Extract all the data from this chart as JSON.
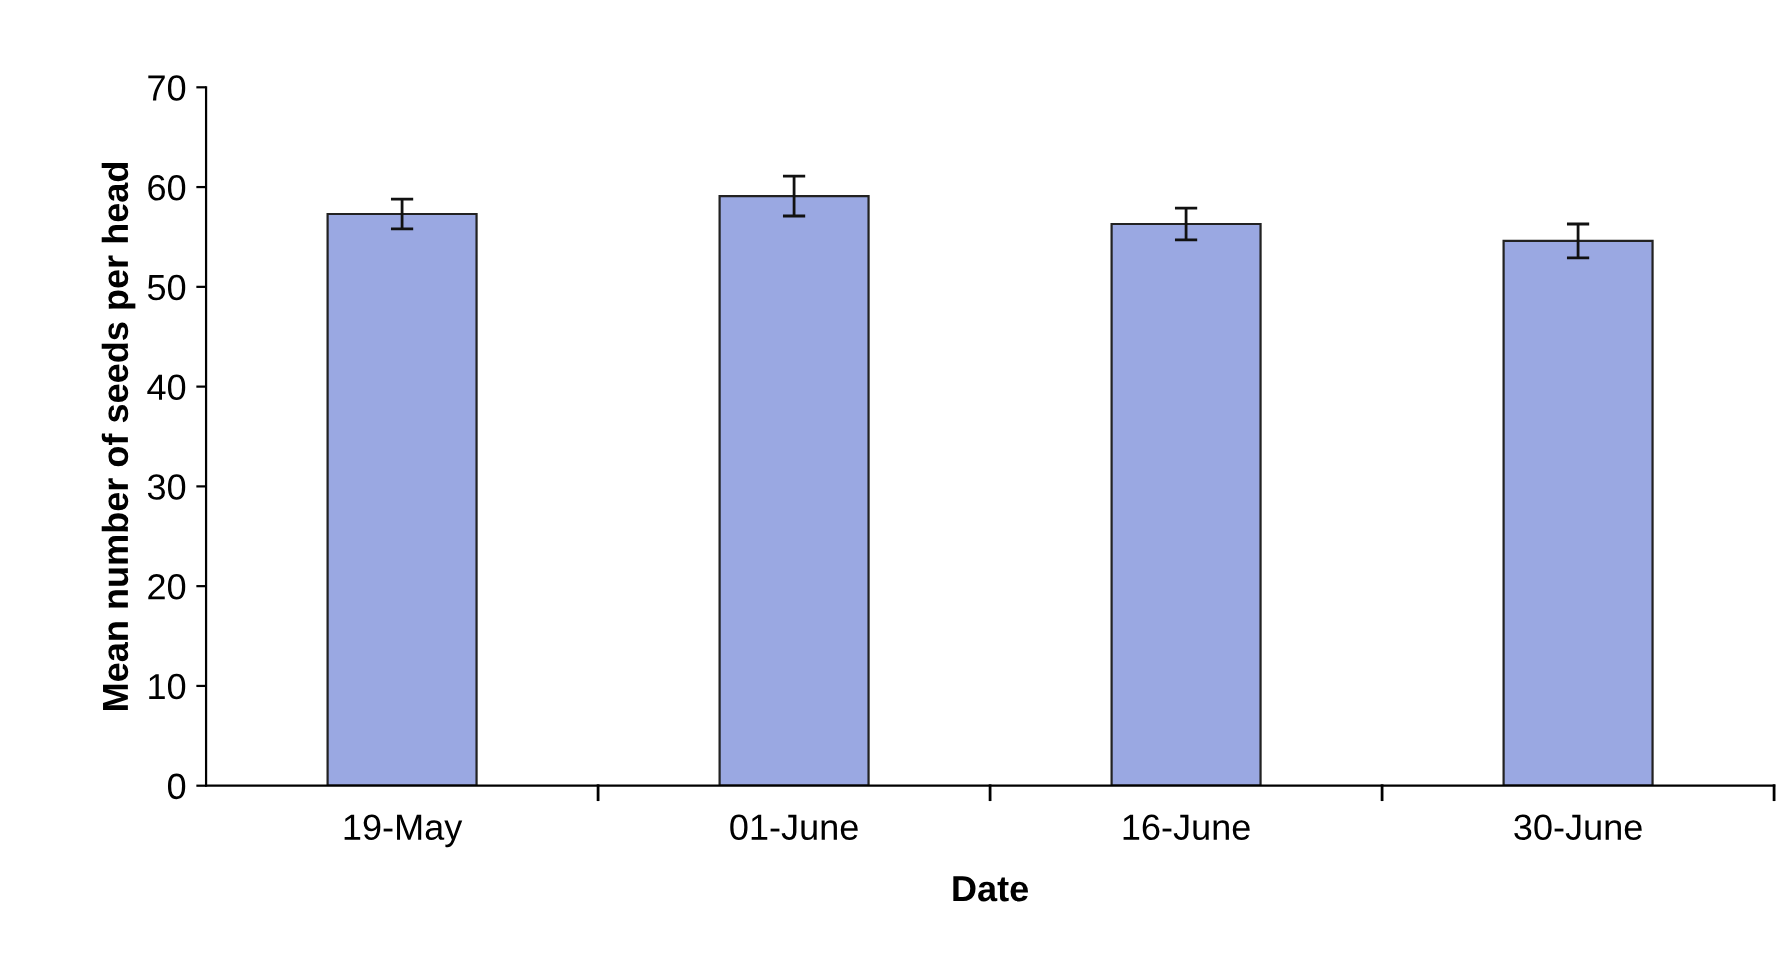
{
  "chart_data": {
    "type": "bar",
    "xlabel": "Date",
    "ylabel": "Mean number of seeds per head",
    "categories": [
      "19-May",
      "01-June",
      "16-June",
      "30-June"
    ],
    "values": [
      57.3,
      59.1,
      56.3,
      54.6
    ],
    "errors": [
      1.5,
      2.0,
      1.6,
      1.7
    ],
    "color": "#9aa8e2",
    "ylim": [
      0,
      70
    ],
    "yticks": [
      0,
      10,
      20,
      30,
      40,
      50,
      60,
      70
    ],
    "grid": false,
    "legend": false
  }
}
